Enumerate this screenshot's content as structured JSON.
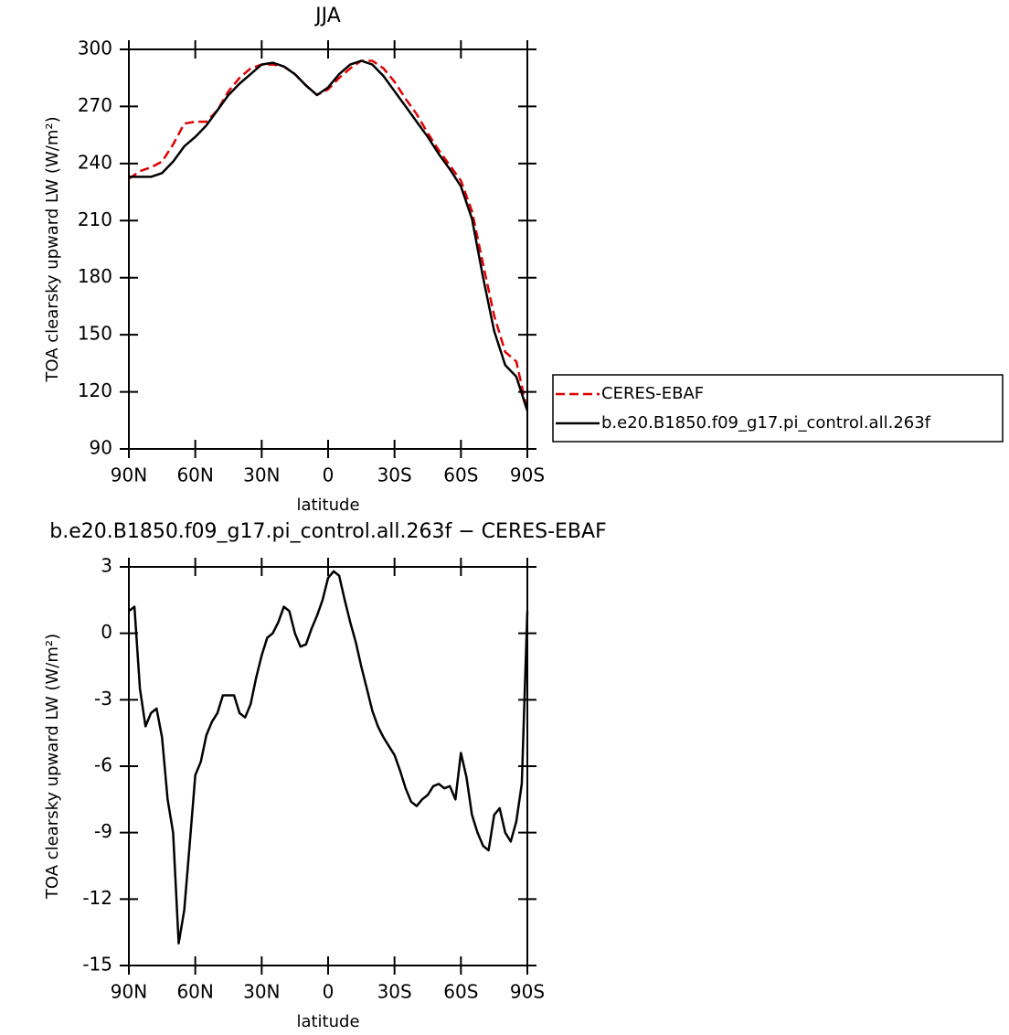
{
  "chart_data": [
    {
      "type": "line",
      "title": "JJA",
      "x_label": "latitude",
      "y_label": "TOA clearsky upward LW (W/m²)",
      "x": [
        90,
        85,
        80,
        75,
        70,
        65,
        60,
        55,
        50,
        45,
        40,
        35,
        30,
        25,
        20,
        15,
        10,
        5,
        0,
        -5,
        -10,
        -15,
        -20,
        -25,
        -30,
        -35,
        -40,
        -45,
        -50,
        -55,
        -60,
        -65,
        -70,
        -75,
        -80,
        -85,
        -90
      ],
      "series": [
        {
          "name": "CERES-EBAF",
          "color": "#e00000",
          "dash": true,
          "values": [
            232,
            236,
            238,
            241,
            250,
            261,
            262,
            262,
            268,
            278,
            285,
            290,
            292,
            292,
            291,
            287,
            281,
            276,
            279,
            285,
            290,
            294,
            294,
            290,
            283,
            274,
            266,
            256,
            247,
            239,
            231,
            215,
            187,
            160,
            141,
            136,
            110
          ]
        },
        {
          "name": "b.e20.B1850.f09_g17.pi_control.all.263f",
          "color": "#000000",
          "dash": false,
          "values": [
            233,
            233,
            233,
            235,
            241,
            249,
            254,
            260,
            268,
            276,
            282,
            287,
            292,
            293,
            291,
            287,
            281,
            276,
            280,
            287,
            292,
            294,
            292,
            286,
            278,
            270,
            262,
            254,
            245,
            237,
            228,
            211,
            180,
            152,
            134,
            128,
            110
          ]
        }
      ],
      "xlim": [
        90,
        -90
      ],
      "xticks": [
        {
          "value": 90,
          "label": "90N"
        },
        {
          "value": 60,
          "label": "60N"
        },
        {
          "value": 30,
          "label": "30N"
        },
        0,
        {
          "value": -30,
          "label": "30S"
        },
        {
          "value": -60,
          "label": "60S"
        },
        {
          "value": -90,
          "label": "90S"
        }
      ],
      "ylim": [
        90,
        300
      ],
      "yticks": [
        90,
        120,
        150,
        180,
        210,
        240,
        270,
        300
      ],
      "legend": "right"
    },
    {
      "type": "line",
      "title": "b.e20.B1850.f09_g17.pi_control.all.263f − CERES-EBAF",
      "x_label": "latitude",
      "y_label": "TOA clearsky upward LW (W/m²)",
      "x": [
        90,
        87.5,
        85,
        82.5,
        80,
        77.5,
        75,
        72.5,
        70,
        67.5,
        65,
        62.5,
        60,
        57.5,
        55,
        52.5,
        50,
        47.5,
        45,
        42.5,
        40,
        37.5,
        35,
        32.5,
        30,
        27.5,
        25,
        22.5,
        20,
        17.5,
        15,
        12.5,
        10,
        7.5,
        5,
        2.5,
        0,
        -2.5,
        -5,
        -7.5,
        -10,
        -12.5,
        -15,
        -17.5,
        -20,
        -22.5,
        -25,
        -27.5,
        -30,
        -32.5,
        -35,
        -37.5,
        -40,
        -42.5,
        -45,
        -47.5,
        -50,
        -52.5,
        -55,
        -57.5,
        -60,
        -62.5,
        -65,
        -67.5,
        -70,
        -72.5,
        -75,
        -77.5,
        -80,
        -82.5,
        -85,
        -87.5,
        -90
      ],
      "color": "#000000",
      "values": [
        1.0,
        1.2,
        -2.5,
        -4.2,
        -3.6,
        -3.4,
        -4.7,
        -7.5,
        -9.0,
        -14.0,
        -12.5,
        -9.5,
        -6.4,
        -5.8,
        -4.6,
        -4.0,
        -3.6,
        -2.8,
        -2.8,
        -2.8,
        -3.6,
        -3.8,
        -3.2,
        -2.0,
        -1.0,
        -0.2,
        0.0,
        0.5,
        1.2,
        1.0,
        0.0,
        -0.6,
        -0.5,
        0.2,
        0.8,
        1.5,
        2.5,
        2.8,
        2.6,
        1.5,
        0.5,
        -0.4,
        -1.5,
        -2.5,
        -3.5,
        -4.2,
        -4.7,
        -5.1,
        -5.5,
        -6.2,
        -7.0,
        -7.6,
        -7.8,
        -7.5,
        -7.3,
        -6.9,
        -6.8,
        -7.0,
        -6.9,
        -7.5,
        -5.4,
        -6.5,
        -8.2,
        -9.0,
        -9.6,
        -9.8,
        -8.2,
        -7.9,
        -9.0,
        -9.4,
        -8.5,
        -6.8,
        1.0
      ],
      "xlim": [
        90,
        -90
      ],
      "xticks": [
        {
          "value": 90,
          "label": "90N"
        },
        {
          "value": 60,
          "label": "60N"
        },
        {
          "value": 30,
          "label": "30N"
        },
        0,
        {
          "value": -30,
          "label": "30S"
        },
        {
          "value": -60,
          "label": "60S"
        },
        {
          "value": -90,
          "label": "90S"
        }
      ],
      "ylim": [
        -15,
        3
      ],
      "yticks": [
        -15,
        -12,
        -9,
        -6,
        -3,
        0,
        3
      ]
    }
  ]
}
